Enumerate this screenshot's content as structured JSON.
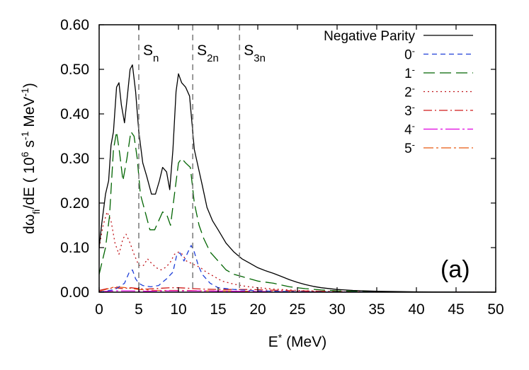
{
  "chart_data": {
    "type": "line",
    "xlabel": {
      "base": "E",
      "sup": "*",
      "rest": " (MeV)"
    },
    "ylabel": {
      "p1": "dω",
      "sub": "fi",
      "p2": "/dE ( 10",
      "sup1": "6",
      "p3": " s",
      "sup2": "-1",
      "p4": " MeV",
      "sup3": "-1",
      "p5": ")"
    },
    "panel_label": "(a)",
    "xlim": [
      0,
      50
    ],
    "ylim": [
      0,
      0.6
    ],
    "xticks": [
      "0",
      "5",
      "10",
      "15",
      "20",
      "25",
      "30",
      "35",
      "40",
      "45",
      "50"
    ],
    "yticks": [
      "0.00",
      "0.10",
      "0.20",
      "0.30",
      "0.40",
      "0.50",
      "0.60"
    ],
    "grid": false,
    "legend_position": "top-right",
    "thresholds": [
      {
        "base": "S",
        "sub": "n",
        "x": 5.0
      },
      {
        "base": "S",
        "sub": "2n",
        "x": 11.8
      },
      {
        "base": "S",
        "sub": "3n",
        "x": 17.7
      }
    ],
    "series": [
      {
        "name": "Negative Parity",
        "color": "#000000",
        "dash": "",
        "points": [
          [
            0,
            0.1
          ],
          [
            0.3,
            0.15
          ],
          [
            0.8,
            0.22
          ],
          [
            1.2,
            0.25
          ],
          [
            1.5,
            0.33
          ],
          [
            1.8,
            0.36
          ],
          [
            2.2,
            0.46
          ],
          [
            2.5,
            0.47
          ],
          [
            2.8,
            0.42
          ],
          [
            3.2,
            0.38
          ],
          [
            3.5,
            0.43
          ],
          [
            3.9,
            0.5
          ],
          [
            4.2,
            0.51
          ],
          [
            4.6,
            0.45
          ],
          [
            5.0,
            0.36
          ],
          [
            5.5,
            0.29
          ],
          [
            6.0,
            0.26
          ],
          [
            6.6,
            0.22
          ],
          [
            7.1,
            0.22
          ],
          [
            7.6,
            0.25
          ],
          [
            8.0,
            0.28
          ],
          [
            8.5,
            0.27
          ],
          [
            8.9,
            0.23
          ],
          [
            9.3,
            0.32
          ],
          [
            9.7,
            0.45
          ],
          [
            10.0,
            0.49
          ],
          [
            10.4,
            0.47
          ],
          [
            10.9,
            0.46
          ],
          [
            11.4,
            0.44
          ],
          [
            12.0,
            0.32
          ],
          [
            12.5,
            0.28
          ],
          [
            13.0,
            0.24
          ],
          [
            13.6,
            0.19
          ],
          [
            14.3,
            0.16
          ],
          [
            15.0,
            0.14
          ],
          [
            16.0,
            0.11
          ],
          [
            17.0,
            0.09
          ],
          [
            18.0,
            0.075
          ],
          [
            19.0,
            0.065
          ],
          [
            20.0,
            0.055
          ],
          [
            21.0,
            0.048
          ],
          [
            22.0,
            0.042
          ],
          [
            23.0,
            0.035
          ],
          [
            24.0,
            0.028
          ],
          [
            25.0,
            0.022
          ],
          [
            26.0,
            0.017
          ],
          [
            27.0,
            0.013
          ],
          [
            28.0,
            0.01
          ],
          [
            30.0,
            0.006
          ],
          [
            32.0,
            0.004
          ],
          [
            35.0,
            0.002
          ],
          [
            40.0,
            0.0008
          ],
          [
            45.0,
            0.0003
          ],
          [
            50.0,
            0.0001
          ]
        ]
      },
      {
        "name": "0",
        "superscript": "-",
        "color": "#1f3fd8",
        "dash": "7,5",
        "points": [
          [
            0,
            0.0
          ],
          [
            2.0,
            0.006
          ],
          [
            3.2,
            0.02
          ],
          [
            3.8,
            0.045
          ],
          [
            4.2,
            0.05
          ],
          [
            4.6,
            0.03
          ],
          [
            5.0,
            0.02
          ],
          [
            5.5,
            0.015
          ],
          [
            6.5,
            0.012
          ],
          [
            7.5,
            0.015
          ],
          [
            8.5,
            0.03
          ],
          [
            9.3,
            0.045
          ],
          [
            9.8,
            0.085
          ],
          [
            10.2,
            0.088
          ],
          [
            10.7,
            0.07
          ],
          [
            11.2,
            0.09
          ],
          [
            11.6,
            0.105
          ],
          [
            12.0,
            0.09
          ],
          [
            12.5,
            0.06
          ],
          [
            13.0,
            0.04
          ],
          [
            14.0,
            0.02
          ],
          [
            15.0,
            0.01
          ],
          [
            17.0,
            0.006
          ],
          [
            20.0,
            0.003
          ],
          [
            25.0,
            0.001
          ],
          [
            30.0,
            0.0005
          ],
          [
            40.0,
            0.0001
          ],
          [
            50.0,
            0.0
          ]
        ]
      },
      {
        "name": "1",
        "superscript": "-",
        "color": "#006400",
        "dash": "16,7",
        "points": [
          [
            0,
            0.04
          ],
          [
            0.8,
            0.1
          ],
          [
            1.3,
            0.17
          ],
          [
            1.8,
            0.32
          ],
          [
            2.2,
            0.36
          ],
          [
            2.6,
            0.31
          ],
          [
            3.0,
            0.25
          ],
          [
            3.5,
            0.3
          ],
          [
            4.0,
            0.36
          ],
          [
            4.4,
            0.35
          ],
          [
            4.8,
            0.3
          ],
          [
            5.2,
            0.22
          ],
          [
            5.8,
            0.18
          ],
          [
            6.4,
            0.14
          ],
          [
            7.0,
            0.14
          ],
          [
            7.5,
            0.16
          ],
          [
            8.0,
            0.18
          ],
          [
            8.5,
            0.175
          ],
          [
            9.0,
            0.15
          ],
          [
            9.5,
            0.22
          ],
          [
            10.0,
            0.29
          ],
          [
            10.4,
            0.3
          ],
          [
            10.9,
            0.29
          ],
          [
            11.5,
            0.28
          ],
          [
            12.0,
            0.2
          ],
          [
            12.6,
            0.15
          ],
          [
            13.2,
            0.12
          ],
          [
            14.0,
            0.09
          ],
          [
            15.0,
            0.07
          ],
          [
            16.0,
            0.05
          ],
          [
            17.0,
            0.04
          ],
          [
            18.0,
            0.035
          ],
          [
            19.0,
            0.03
          ],
          [
            20.0,
            0.025
          ],
          [
            22.0,
            0.02
          ],
          [
            24.0,
            0.012
          ],
          [
            26.0,
            0.008
          ],
          [
            28.0,
            0.005
          ],
          [
            30.0,
            0.003
          ],
          [
            35.0,
            0.001
          ],
          [
            40.0,
            0.0004
          ],
          [
            50.0,
            0.0001
          ]
        ]
      },
      {
        "name": "2",
        "superscript": "-",
        "color": "#c0151b",
        "dash": "2,4",
        "points": [
          [
            0,
            0.1
          ],
          [
            0.5,
            0.15
          ],
          [
            1.0,
            0.18
          ],
          [
            1.5,
            0.16
          ],
          [
            2.0,
            0.11
          ],
          [
            2.5,
            0.085
          ],
          [
            3.0,
            0.12
          ],
          [
            3.4,
            0.13
          ],
          [
            3.9,
            0.11
          ],
          [
            4.4,
            0.085
          ],
          [
            5.0,
            0.06
          ],
          [
            5.6,
            0.06
          ],
          [
            6.1,
            0.075
          ],
          [
            6.6,
            0.065
          ],
          [
            7.2,
            0.055
          ],
          [
            7.8,
            0.05
          ],
          [
            8.3,
            0.055
          ],
          [
            8.9,
            0.065
          ],
          [
            9.5,
            0.085
          ],
          [
            10.0,
            0.09
          ],
          [
            10.5,
            0.085
          ],
          [
            11.0,
            0.07
          ],
          [
            11.6,
            0.065
          ],
          [
            12.2,
            0.06
          ],
          [
            12.8,
            0.055
          ],
          [
            13.5,
            0.045
          ],
          [
            14.5,
            0.035
          ],
          [
            15.5,
            0.025
          ],
          [
            17.0,
            0.018
          ],
          [
            18.5,
            0.013
          ],
          [
            20.0,
            0.01
          ],
          [
            22.0,
            0.007
          ],
          [
            25.0,
            0.004
          ],
          [
            28.0,
            0.002
          ],
          [
            32.0,
            0.001
          ],
          [
            40.0,
            0.0003
          ],
          [
            50.0,
            0.0001
          ]
        ]
      },
      {
        "name": "3",
        "superscript": "-",
        "color": "#d11a1a",
        "dash": "12,4,2,4",
        "points": [
          [
            0,
            0.004
          ],
          [
            1.0,
            0.008
          ],
          [
            2.0,
            0.01
          ],
          [
            3.0,
            0.008
          ],
          [
            4.0,
            0.01
          ],
          [
            5.0,
            0.008
          ],
          [
            6.0,
            0.007
          ],
          [
            7.0,
            0.008
          ],
          [
            8.0,
            0.009
          ],
          [
            9.0,
            0.01
          ],
          [
            10.0,
            0.01
          ],
          [
            11.0,
            0.009
          ],
          [
            12.0,
            0.008
          ],
          [
            13.0,
            0.007
          ],
          [
            15.0,
            0.006
          ],
          [
            17.0,
            0.006
          ],
          [
            19.0,
            0.006
          ],
          [
            21.0,
            0.005
          ],
          [
            23.0,
            0.004
          ],
          [
            25.0,
            0.003
          ],
          [
            28.0,
            0.002
          ],
          [
            31.0,
            0.001
          ],
          [
            35.0,
            0.0005
          ],
          [
            42.0,
            0.0002
          ],
          [
            50.0,
            0.0
          ]
        ]
      },
      {
        "name": "4",
        "superscript": "-",
        "color": "#e000e0",
        "dash": "20,4,3,4",
        "points": [
          [
            0,
            0.001
          ],
          [
            2.0,
            0.003
          ],
          [
            4.0,
            0.003
          ],
          [
            6.0,
            0.002
          ],
          [
            8.0,
            0.003
          ],
          [
            10.0,
            0.003
          ],
          [
            12.0,
            0.003
          ],
          [
            14.0,
            0.0025
          ],
          [
            17.0,
            0.002
          ],
          [
            20.0,
            0.0015
          ],
          [
            25.0,
            0.001
          ],
          [
            30.0,
            0.0005
          ],
          [
            40.0,
            0.0002
          ],
          [
            50.0,
            0.0
          ]
        ]
      },
      {
        "name": "5",
        "superscript": "-",
        "color": "#e65a10",
        "dash": "14,4,3,4",
        "points": [
          [
            0,
            0.002
          ],
          [
            2.0,
            0.012
          ],
          [
            3.5,
            0.01
          ],
          [
            5.0,
            0.006
          ],
          [
            7.0,
            0.004
          ],
          [
            9.0,
            0.004
          ],
          [
            11.0,
            0.004
          ],
          [
            13.0,
            0.003
          ],
          [
            15.0,
            0.003
          ],
          [
            18.0,
            0.002
          ],
          [
            22.0,
            0.0015
          ],
          [
            26.0,
            0.001
          ],
          [
            30.0,
            0.0005
          ],
          [
            40.0,
            0.0002
          ],
          [
            50.0,
            0.0
          ]
        ]
      }
    ]
  }
}
